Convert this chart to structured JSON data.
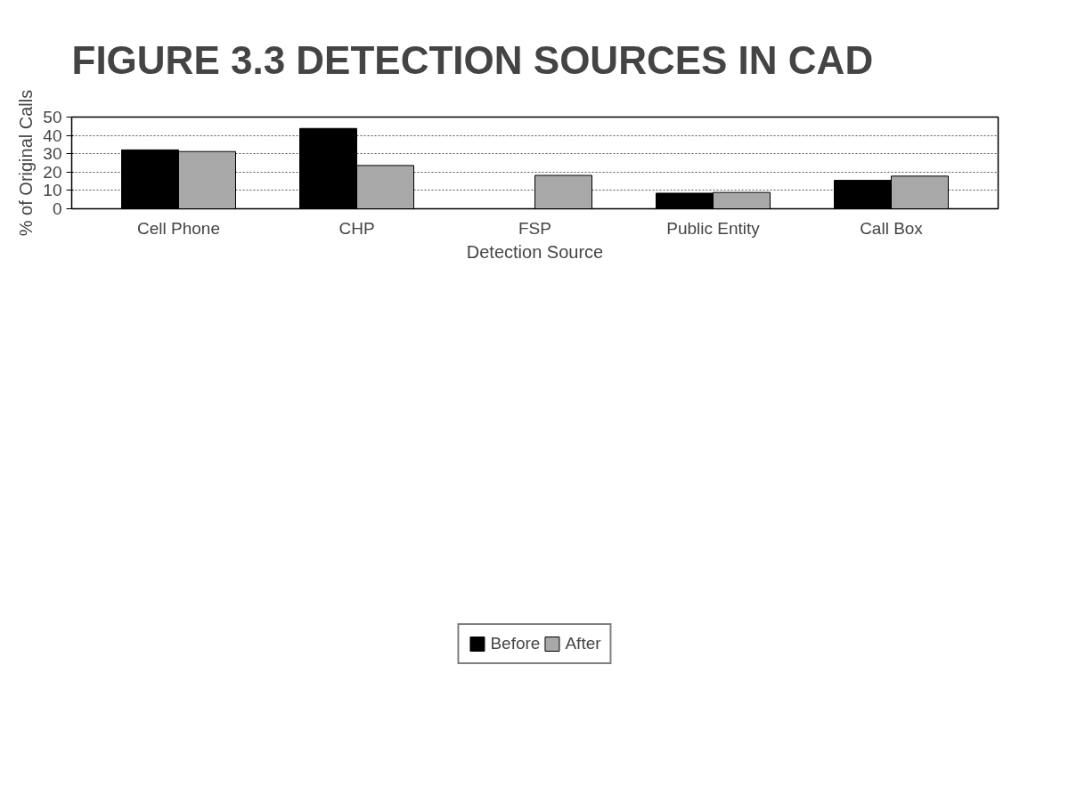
{
  "chart_data": {
    "type": "bar",
    "title": "FIGURE 3.3  DETECTION SOURCES IN CAD",
    "xlabel": "Detection Source",
    "ylabel": "% of Original Calls",
    "categories": [
      "Cell Phone",
      "CHP",
      "FSP",
      "Public Entity",
      "Call Box"
    ],
    "series": [
      {
        "name": "Before",
        "color": "#000000",
        "values": [
          32.1,
          43.8,
          0,
          8.5,
          15.5
        ]
      },
      {
        "name": "After",
        "color": "#a8a8a8",
        "values": [
          31.2,
          23.6,
          18.2,
          8.9,
          17.8
        ]
      }
    ],
    "ylim": [
      0,
      50
    ],
    "yticks": [
      0,
      10,
      20,
      30,
      40,
      50
    ],
    "grid": "y",
    "legend": "bottom"
  }
}
